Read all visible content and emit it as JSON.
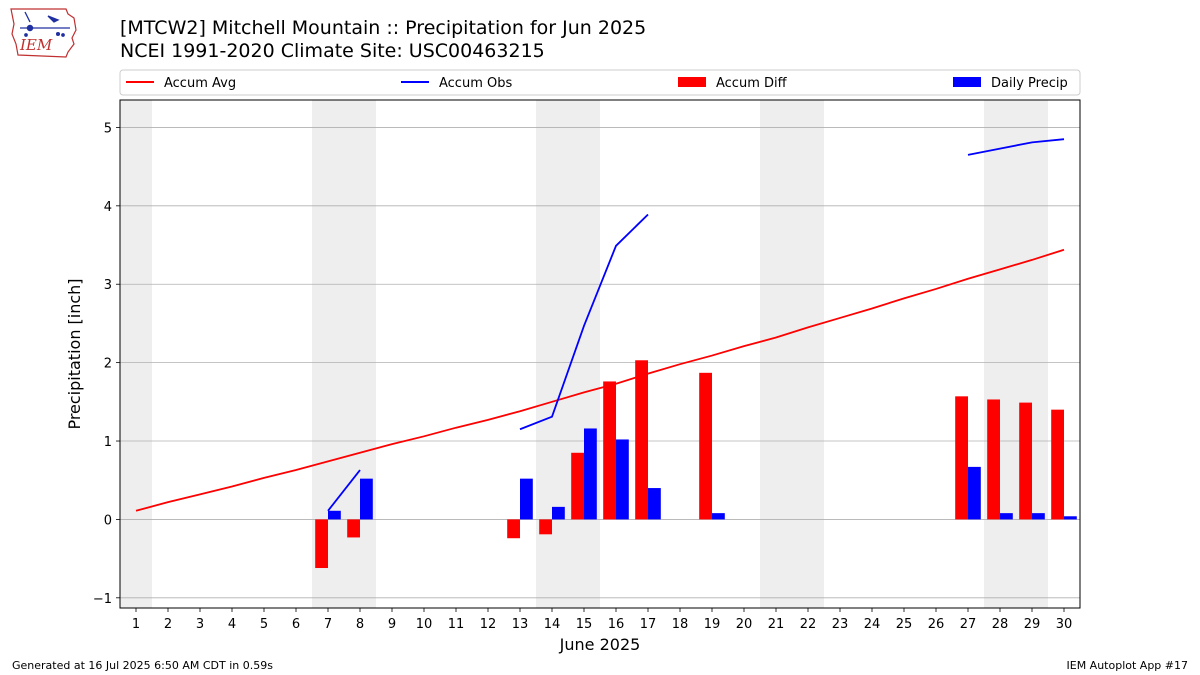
{
  "header": {
    "logo_text": "IEM",
    "title_line1": "[MTCW2] Mitchell Mountain :: Precipitation for Jun 2025",
    "title_line2": "NCEI 1991-2020 Climate Site: USC00463215"
  },
  "footer": {
    "generated": "Generated at 16 Jul 2025 6:50 AM CDT in 0.59s",
    "app": "IEM Autoplot App #17"
  },
  "colors": {
    "accum_avg": "#ff0000",
    "accum_obs": "#0000ff",
    "accum_diff": "#ff0000",
    "daily_precip": "#0000ff",
    "weekend_shade": "#eeeeee",
    "grid": "#b0b0b0"
  },
  "chart_data": {
    "type": "bar",
    "title": "[MTCW2] Mitchell Mountain :: Precipitation for Jun 2025",
    "subtitle": "NCEI 1991-2020 Climate Site: USC00463215",
    "xlabel": "June 2025",
    "ylabel": "Precipitation [inch]",
    "xlim": [
      0.5,
      30.5
    ],
    "ylim": [
      -1.13,
      5.35
    ],
    "yticks": [
      -1,
      0,
      1,
      2,
      3,
      4,
      5
    ],
    "xticks": [
      1,
      2,
      3,
      4,
      5,
      6,
      7,
      8,
      9,
      10,
      11,
      12,
      13,
      14,
      15,
      16,
      17,
      18,
      19,
      20,
      21,
      22,
      23,
      24,
      25,
      26,
      27,
      28,
      29,
      30
    ],
    "grid": "horizontal",
    "legend_position": "top",
    "shaded_days": [
      1,
      7,
      8,
      14,
      15,
      21,
      22,
      28,
      29
    ],
    "series": [
      {
        "name": "Accum Avg",
        "type": "line",
        "x": [
          1,
          2,
          3,
          4,
          5,
          6,
          7,
          8,
          9,
          10,
          11,
          12,
          13,
          14,
          15,
          16,
          17,
          18,
          19,
          20,
          21,
          22,
          23,
          24,
          25,
          26,
          27,
          28,
          29,
          30
        ],
        "values": [
          0.11,
          0.22,
          0.32,
          0.42,
          0.53,
          0.63,
          0.74,
          0.85,
          0.96,
          1.06,
          1.17,
          1.27,
          1.38,
          1.5,
          1.62,
          1.73,
          1.86,
          1.98,
          2.09,
          2.21,
          2.32,
          2.45,
          2.57,
          2.69,
          2.82,
          2.94,
          3.07,
          3.19,
          3.31,
          3.44
        ]
      },
      {
        "name": "Accum Obs",
        "type": "line",
        "x": [
          7,
          8,
          13,
          14,
          15,
          16,
          17,
          27,
          28,
          29,
          30
        ],
        "values": [
          0.11,
          0.63,
          1.15,
          1.31,
          2.47,
          3.49,
          3.89,
          4.65,
          4.73,
          4.81,
          4.85
        ]
      },
      {
        "name": "Accum Diff",
        "type": "bar",
        "x": [
          7,
          8,
          13,
          14,
          15,
          16,
          17,
          19,
          27,
          28,
          29,
          30
        ],
        "values": [
          -0.62,
          -0.23,
          -0.24,
          -0.19,
          0.85,
          1.76,
          2.03,
          1.87,
          1.57,
          1.53,
          1.49,
          1.4
        ]
      },
      {
        "name": "Daily Precip",
        "type": "bar",
        "x": [
          7,
          8,
          13,
          14,
          15,
          16,
          17,
          19,
          27,
          28,
          29,
          30
        ],
        "values": [
          0.11,
          0.52,
          0.52,
          0.16,
          1.16,
          1.02,
          0.4,
          0.08,
          0.67,
          0.08,
          0.08,
          0.04
        ]
      }
    ]
  }
}
